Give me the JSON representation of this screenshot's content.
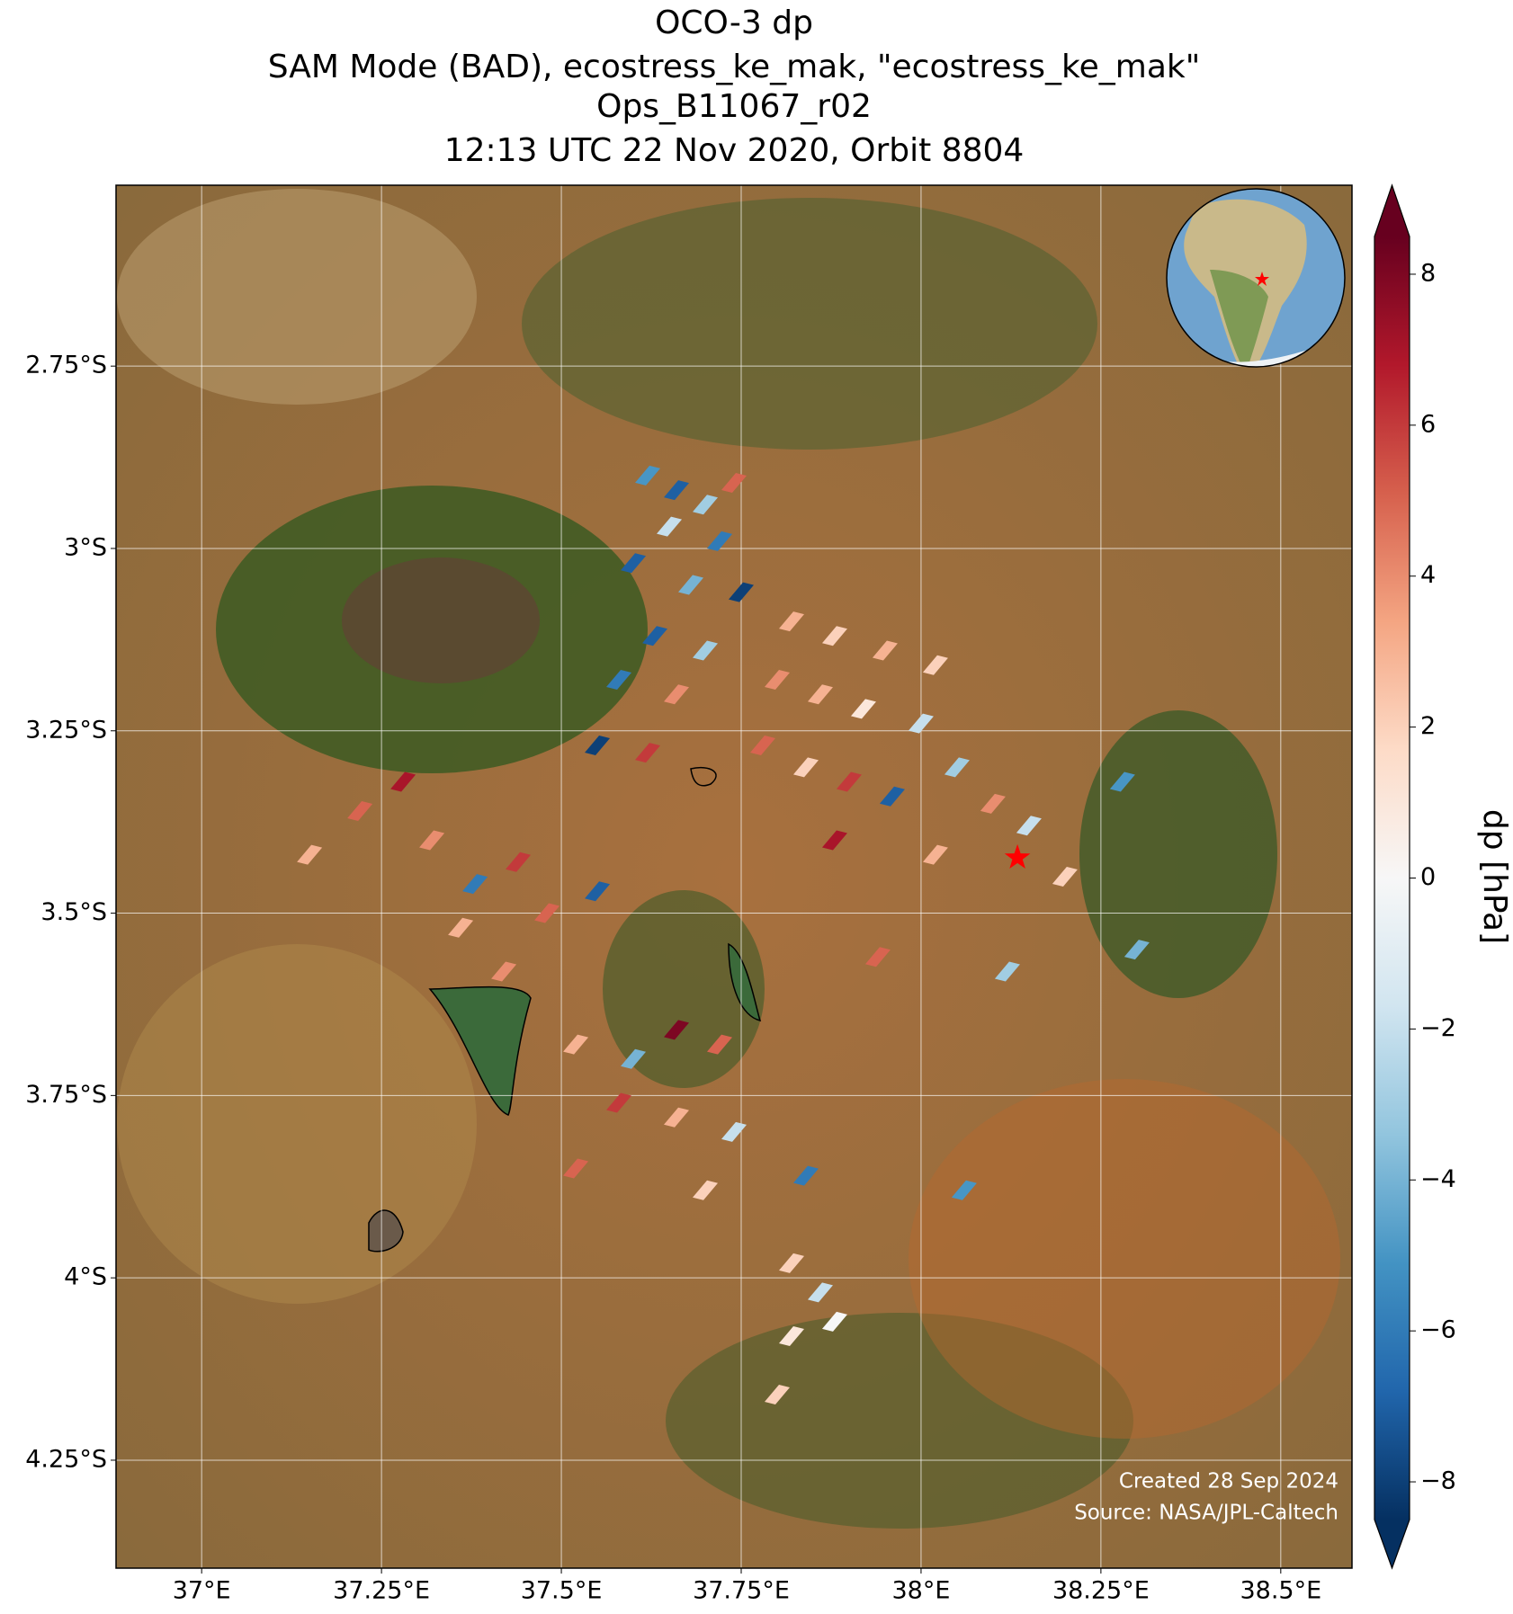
{
  "chart_data": {
    "type": "map",
    "title": [
      "OCO-3 dp",
      "SAM Mode (BAD), ecostress_ke_mak, \"ecostress_ke_mak\"",
      "Ops_B11067_r02",
      "12:13 UTC 22 Nov 2020, Orbit 8804"
    ],
    "xlim": [
      36.881,
      38.599
    ],
    "ylim": [
      -4.398,
      -2.502
    ],
    "xticks": [
      {
        "value": 37,
        "label": "37°E"
      },
      {
        "value": 37.25,
        "label": "37.25°E"
      },
      {
        "value": 37.5,
        "label": "37.5°E"
      },
      {
        "value": 37.75,
        "label": "37.75°E"
      },
      {
        "value": 38,
        "label": "38°E"
      },
      {
        "value": 38.25,
        "label": "38.25°E"
      },
      {
        "value": 38.5,
        "label": "38.5°E"
      }
    ],
    "yticks": [
      {
        "value": -2.75,
        "label": "2.75°S"
      },
      {
        "value": -3,
        "label": "3°S"
      },
      {
        "value": -3.25,
        "label": "3.25°S"
      },
      {
        "value": -3.5,
        "label": "3.5°S"
      },
      {
        "value": -3.75,
        "label": "3.75°S"
      },
      {
        "value": -4,
        "label": "4°S"
      },
      {
        "value": -4.25,
        "label": "4.25°S"
      }
    ],
    "grid": true,
    "colorbar": {
      "label": "dp [hPa]",
      "clim": [
        -8.5,
        8.5
      ],
      "ticks": [
        {
          "value": -8,
          "label": "−8"
        },
        {
          "value": -6,
          "label": "−6"
        },
        {
          "value": -4,
          "label": "−4"
        },
        {
          "value": -2,
          "label": "−2"
        },
        0,
        2,
        4,
        6,
        8
      ],
      "colors": [
        "#053061",
        "#2166ac",
        "#4393c3",
        "#92c5de",
        "#d1e5f0",
        "#f7f7f7",
        "#fddbc7",
        "#f4a582",
        "#d6604d",
        "#b2182b",
        "#67001f"
      ]
    },
    "site": {
      "lon": 38.134,
      "lat": -3.424,
      "color": "#ff0000"
    },
    "soundings": {
      "lon": [
        37.62,
        37.66,
        37.7,
        37.74,
        37.65,
        37.72,
        37.6,
        37.68,
        37.75,
        37.63,
        37.7,
        37.58,
        37.66,
        37.55,
        37.62,
        37.82,
        37.88,
        37.95,
        38.02,
        37.8,
        37.86,
        37.92,
        38.0,
        37.78,
        37.84,
        37.9,
        37.96,
        38.05,
        38.1,
        38.15,
        37.88,
        38.02,
        38.2,
        37.15,
        37.22,
        37.28,
        37.32,
        37.38,
        37.44,
        37.36,
        37.48,
        37.55,
        37.42,
        37.52,
        37.6,
        37.66,
        37.72,
        37.58,
        37.66,
        37.74,
        37.52,
        37.7,
        37.84,
        37.82,
        37.86,
        37.82,
        37.88,
        37.8,
        38.12,
        38.3,
        38.06,
        37.94,
        38.28
      ],
      "lat": [
        -2.9,
        -2.92,
        -2.94,
        -2.91,
        -2.97,
        -2.99,
        -3.02,
        -3.05,
        -3.06,
        -3.12,
        -3.14,
        -3.18,
        -3.2,
        -3.27,
        -3.28,
        -3.1,
        -3.12,
        -3.14,
        -3.16,
        -3.18,
        -3.2,
        -3.22,
        -3.24,
        -3.27,
        -3.3,
        -3.32,
        -3.34,
        -3.3,
        -3.35,
        -3.38,
        -3.4,
        -3.42,
        -3.45,
        -3.42,
        -3.36,
        -3.32,
        -3.4,
        -3.46,
        -3.43,
        -3.52,
        -3.5,
        -3.47,
        -3.58,
        -3.68,
        -3.7,
        -3.66,
        -3.68,
        -3.76,
        -3.78,
        -3.8,
        -3.85,
        -3.88,
        -3.86,
        -3.98,
        -4.02,
        -4.08,
        -4.06,
        -4.16,
        -3.58,
        -3.55,
        -3.88,
        -3.56,
        -3.32
      ],
      "dp": [
        -5,
        -7,
        -3,
        5,
        -2,
        -6,
        -7,
        -4,
        -8,
        -7,
        -3,
        -6,
        4,
        -8,
        6,
        3,
        2,
        3,
        2,
        4,
        3,
        1,
        -2,
        5,
        2,
        6,
        -7,
        -3,
        4,
        -2,
        7,
        3,
        2,
        3,
        5,
        7,
        4,
        -6,
        6,
        3,
        5,
        -7,
        4,
        3,
        -4,
        8,
        5,
        6,
        3,
        -2,
        5,
        2,
        -6,
        2,
        -2,
        1,
        0,
        2,
        -3,
        -4,
        -5,
        5,
        -5
      ]
    },
    "credits": [
      "Created 28 Sep 2024",
      "Source: NASA/JPL-Caltech"
    ]
  }
}
